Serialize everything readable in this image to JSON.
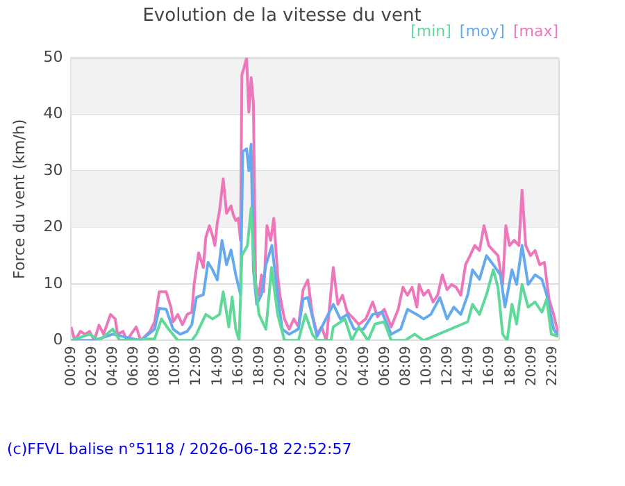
{
  "chart_data": {
    "type": "line",
    "title": "Evolution de la vitesse du vent",
    "ylabel": "Force du vent (km/h)",
    "annotations": [
      "(c)FFVL balise n°5118 / 2026-06-18 22:52:57"
    ],
    "xlim": [
      "2026-06-17T00:09",
      "2026-06-18T22:42"
    ],
    "xticks": [
      {
        "value": "2026-06-17T00:09",
        "label": "00:09"
      },
      {
        "value": "2026-06-17T02:09",
        "label": "02:09"
      },
      {
        "value": "2026-06-17T04:09",
        "label": "04:09"
      },
      {
        "value": "2026-06-17T06:09",
        "label": "06:09"
      },
      {
        "value": "2026-06-17T08:09",
        "label": "08:09"
      },
      {
        "value": "2026-06-17T10:09",
        "label": "10:09"
      },
      {
        "value": "2026-06-17T12:09",
        "label": "12:09"
      },
      {
        "value": "2026-06-17T14:09",
        "label": "14:09"
      },
      {
        "value": "2026-06-17T16:09",
        "label": "16:09"
      },
      {
        "value": "2026-06-17T18:09",
        "label": "18:09"
      },
      {
        "value": "2026-06-17T20:09",
        "label": "20:09"
      },
      {
        "value": "2026-06-17T22:09",
        "label": "22:09"
      },
      {
        "value": "2026-06-18T00:09",
        "label": "00:09"
      },
      {
        "value": "2026-06-18T02:09",
        "label": "02:09"
      },
      {
        "value": "2026-06-18T04:09",
        "label": "04:09"
      },
      {
        "value": "2026-06-18T06:09",
        "label": "06:09"
      },
      {
        "value": "2026-06-18T08:09",
        "label": "08:09"
      },
      {
        "value": "2026-06-18T10:09",
        "label": "10:09"
      },
      {
        "value": "2026-06-18T12:09",
        "label": "12:09"
      },
      {
        "value": "2026-06-18T14:09",
        "label": "14:09"
      },
      {
        "value": "2026-06-18T16:09",
        "label": "16:09"
      },
      {
        "value": "2026-06-18T18:09",
        "label": "18:09"
      },
      {
        "value": "2026-06-18T20:09",
        "label": "20:09"
      },
      {
        "value": "2026-06-18T22:09",
        "label": "22:09"
      }
    ],
    "ylim": [
      0,
      50
    ],
    "yticks": [
      0,
      10,
      20,
      30,
      40,
      50
    ],
    "grid": "y",
    "legend": "top right",
    "marker": "none",
    "bands": [
      {
        "axis": "y",
        "from": 20,
        "to": 30,
        "color": "#f2f2f2"
      },
      {
        "axis": "y",
        "from": 40,
        "to": 50,
        "color": "#f2f2f2"
      }
    ],
    "series": [
      {
        "name": "[min]",
        "color": "#5fd99a",
        "x": [
          "2026-06-17T00:09",
          "2026-06-17T01:55",
          "2026-06-17T02:49",
          "2026-06-17T04:08",
          "2026-06-17T04:48",
          "2026-06-17T08:08",
          "2026-06-17T08:47",
          "2026-06-17T09:28",
          "2026-06-17T10:21",
          "2026-06-17T11:41",
          "2026-06-17T12:07",
          "2026-06-17T13:01",
          "2026-06-17T13:40",
          "2026-06-17T14:20",
          "2026-06-17T14:41",
          "2026-06-17T15:13",
          "2026-06-17T15:32",
          "2026-06-17T15:53",
          "2026-06-17T16:12",
          "2026-06-17T16:28",
          "2026-06-17T17:00",
          "2026-06-17T17:21",
          "2026-06-17T17:40",
          "2026-06-17T18:06",
          "2026-06-17T18:46",
          "2026-06-17T19:18",
          "2026-06-17T19:53",
          "2026-06-17T20:32",
          "2026-06-17T21:52",
          "2026-06-17T22:32",
          "2026-06-17T23:12",
          "2026-06-17T23:39",
          "2026-06-18T00:59",
          "2026-06-18T01:12",
          "2026-06-18T02:19",
          "2026-06-18T02:58",
          "2026-06-18T03:38",
          "2026-06-18T04:31",
          "2026-06-18T05:11",
          "2026-06-18T06:04",
          "2026-06-18T06:44",
          "2026-06-18T08:04",
          "2026-06-18T08:58",
          "2026-06-18T09:50",
          "2026-06-18T14:03",
          "2026-06-18T14:30",
          "2026-06-18T15:10",
          "2026-06-18T15:50",
          "2026-06-18T16:29",
          "2026-06-18T16:56",
          "2026-06-18T17:23",
          "2026-06-18T17:49",
          "2026-06-18T18:16",
          "2026-06-18T18:43",
          "2026-06-18T19:14",
          "2026-06-18T19:49",
          "2026-06-18T20:29",
          "2026-06-18T21:08",
          "2026-06-18T21:35",
          "2026-06-18T22:02",
          "2026-06-18T22:42"
        ],
        "values": [
          0,
          1.1,
          0,
          2,
          0,
          0.3,
          3.8,
          2,
          0,
          0,
          1.1,
          4.6,
          3.8,
          4.6,
          8.6,
          2.4,
          7.7,
          2,
          0,
          15,
          16.8,
          23.4,
          11.6,
          4.6,
          2,
          12.9,
          4.6,
          0,
          0,
          4.6,
          1.1,
          0,
          0,
          2.4,
          3.8,
          0,
          2.4,
          0,
          2.9,
          3.3,
          0,
          0,
          1.1,
          0,
          3.3,
          6.4,
          4.6,
          8.1,
          12.5,
          9.4,
          1.1,
          0,
          6.4,
          2.9,
          9.9,
          5.9,
          6.8,
          5,
          7.3,
          1.1,
          0.7
        ]
      },
      {
        "name": "[moy]",
        "color": "#66aaee",
        "x": [
          "2026-06-17T00:09",
          "2026-06-17T02:22",
          "2026-06-17T04:08",
          "2026-06-17T06:48",
          "2026-06-17T08:08",
          "2026-06-17T08:34",
          "2026-06-17T09:14",
          "2026-06-17T09:54",
          "2026-06-17T10:34",
          "2026-06-17T11:14",
          "2026-06-17T11:41",
          "2026-06-17T12:07",
          "2026-06-17T12:47",
          "2026-06-17T13:14",
          "2026-06-17T13:40",
          "2026-06-17T14:07",
          "2026-06-17T14:34",
          "2026-06-17T15:00",
          "2026-06-17T15:26",
          "2026-06-17T15:53",
          "2026-06-17T16:20",
          "2026-06-17T16:33",
          "2026-06-17T16:55",
          "2026-06-17T17:08",
          "2026-06-17T17:21",
          "2026-06-17T17:34",
          "2026-06-17T17:53",
          "2026-06-17T18:20",
          "2026-06-17T18:46",
          "2026-06-17T19:20",
          "2026-06-17T19:53",
          "2026-06-17T20:19",
          "2026-06-17T20:59",
          "2026-06-17T21:52",
          "2026-06-17T22:19",
          "2026-06-17T22:46",
          "2026-06-17T23:39",
          "2026-06-18T01:12",
          "2026-06-18T01:52",
          "2026-06-18T02:32",
          "2026-06-18T03:11",
          "2026-06-18T04:05",
          "2026-06-18T04:58",
          "2026-06-18T05:51",
          "2026-06-18T06:44",
          "2026-06-18T07:38",
          "2026-06-18T08:17",
          "2026-06-18T09:11",
          "2026-06-18T09:50",
          "2026-06-18T10:31",
          "2026-06-18T11:23",
          "2026-06-18T12:04",
          "2026-06-18T12:43",
          "2026-06-18T13:23",
          "2026-06-18T14:03",
          "2026-06-18T14:30",
          "2026-06-18T15:10",
          "2026-06-18T15:50",
          "2026-06-18T16:29",
          "2026-06-18T17:10",
          "2026-06-18T17:36",
          "2026-06-18T18:16",
          "2026-06-18T18:43",
          "2026-06-18T19:14",
          "2026-06-18T19:49",
          "2026-06-18T20:29",
          "2026-06-18T21:08",
          "2026-06-18T21:35",
          "2026-06-18T22:15",
          "2026-06-18T22:42"
        ],
        "values": [
          0,
          0,
          1.1,
          0,
          2,
          5.7,
          5.5,
          2,
          1.1,
          1.6,
          2.8,
          7.6,
          8.1,
          13.8,
          12.5,
          10.7,
          17.7,
          13.4,
          16,
          11.6,
          8.1,
          33.4,
          33.9,
          30,
          34.7,
          12.5,
          6.4,
          8.1,
          13.4,
          16.8,
          8.1,
          2,
          1.1,
          2,
          7.3,
          7.6,
          0.7,
          6.4,
          3.8,
          4.6,
          2,
          2,
          4.6,
          5,
          1.1,
          2,
          5.5,
          4.6,
          3.8,
          4.6,
          7.6,
          3.8,
          5.9,
          4.6,
          8.1,
          12.5,
          10.8,
          15,
          13.4,
          11.6,
          5.9,
          12.5,
          9.9,
          16.8,
          9.9,
          11.6,
          10.8,
          8.1,
          2,
          0.7
        ]
      },
      {
        "name": "[max]",
        "color": "#ee77bb",
        "x": [
          "2026-06-17T00:09",
          "2026-06-17T00:30",
          "2026-06-17T01:02",
          "2026-06-17T01:29",
          "2026-06-17T01:55",
          "2026-06-17T02:22",
          "2026-06-17T02:49",
          "2026-06-17T03:15",
          "2026-06-17T03:55",
          "2026-06-17T04:22",
          "2026-06-17T04:35",
          "2026-06-17T05:07",
          "2026-06-17T05:28",
          "2026-06-17T06:22",
          "2026-06-17T06:48",
          "2026-06-17T07:41",
          "2026-06-17T08:08",
          "2026-06-17T08:34",
          "2026-06-17T09:14",
          "2026-06-17T09:41",
          "2026-06-17T09:54",
          "2026-06-17T10:21",
          "2026-06-17T10:47",
          "2026-06-17T11:14",
          "2026-06-17T11:41",
          "2026-06-17T11:54",
          "2026-06-17T12:20",
          "2026-06-17T12:47",
          "2026-06-17T13:01",
          "2026-06-17T13:22",
          "2026-06-17T13:40",
          "2026-06-17T13:53",
          "2026-06-17T14:07",
          "2026-06-17T14:20",
          "2026-06-17T14:41",
          "2026-06-17T15:00",
          "2026-06-17T15:26",
          "2026-06-17T15:40",
          "2026-06-17T15:53",
          "2026-06-17T16:07",
          "2026-06-17T16:20",
          "2026-06-17T16:28",
          "2026-06-17T16:41",
          "2026-06-17T16:55",
          "2026-06-17T17:08",
          "2026-06-17T17:21",
          "2026-06-17T17:34",
          "2026-06-17T17:47",
          "2026-06-17T18:06",
          "2026-06-17T18:20",
          "2026-06-17T18:33",
          "2026-06-17T18:52",
          "2026-06-17T19:13",
          "2026-06-17T19:31",
          "2026-06-17T19:53",
          "2026-06-17T20:06",
          "2026-06-17T20:32",
          "2026-06-17T20:59",
          "2026-06-17T21:26",
          "2026-06-17T21:52",
          "2026-06-17T22:19",
          "2026-06-17T22:46",
          "2026-06-17T23:12",
          "2026-06-17T23:39",
          "2026-06-18T00:05",
          "2026-06-18T00:32",
          "2026-06-18T01:12",
          "2026-06-18T01:38",
          "2026-06-18T02:05",
          "2026-06-18T02:32",
          "2026-06-18T03:11",
          "2026-06-18T03:38",
          "2026-06-18T04:18",
          "2026-06-18T04:58",
          "2026-06-18T05:25",
          "2026-06-18T06:04",
          "2026-06-18T06:44",
          "2026-06-18T07:24",
          "2026-06-18T07:51",
          "2026-06-18T08:17",
          "2026-06-18T08:44",
          "2026-06-18T09:11",
          "2026-06-18T09:24",
          "2026-06-18T09:50",
          "2026-06-18T10:17",
          "2026-06-18T10:44",
          "2026-06-18T11:10",
          "2026-06-18T11:37",
          "2026-06-18T12:04",
          "2026-06-18T12:30",
          "2026-06-18T12:56",
          "2026-06-18T13:23",
          "2026-06-18T13:50",
          "2026-06-18T14:16",
          "2026-06-18T14:43",
          "2026-06-18T15:10",
          "2026-06-18T15:36",
          "2026-06-18T16:03",
          "2026-06-18T16:29",
          "2026-06-18T16:56",
          "2026-06-18T17:23",
          "2026-06-18T17:41",
          "2026-06-18T18:02",
          "2026-06-18T18:29",
          "2026-06-18T18:56",
          "2026-06-18T19:14",
          "2026-06-18T19:35",
          "2026-06-18T20:02",
          "2026-06-18T20:29",
          "2026-06-18T20:55",
          "2026-06-18T21:22",
          "2026-06-18T21:49",
          "2026-06-18T22:15",
          "2026-06-18T22:42"
        ],
        "values": [
          2.4,
          0,
          1.6,
          1.1,
          1.6,
          0,
          2.7,
          1.1,
          4.6,
          3.8,
          1.1,
          1.6,
          0,
          2.4,
          0,
          1.6,
          3.3,
          8.6,
          8.6,
          5.9,
          3.3,
          4.6,
          2.8,
          4.6,
          5,
          9.9,
          15.5,
          12.9,
          18.2,
          20.3,
          18.5,
          16.8,
          20.8,
          23,
          28.6,
          22.5,
          23.8,
          22.1,
          21.2,
          21.6,
          17.7,
          47,
          48.3,
          50,
          40.4,
          46.5,
          42,
          9.9,
          8,
          11.6,
          8.6,
          20.3,
          17.7,
          21.6,
          11.6,
          8,
          3.8,
          2,
          3.8,
          2.4,
          9,
          10.7,
          4.6,
          1.1,
          2.4,
          0,
          12.9,
          6.4,
          8,
          5,
          3.8,
          2.8,
          3.8,
          6.8,
          4.2,
          5.5,
          2.4,
          5.5,
          9.4,
          8,
          9.4,
          5.9,
          9.9,
          8,
          8.9,
          6.8,
          8,
          11.6,
          9,
          9.9,
          9.4,
          8,
          13.4,
          15,
          16.8,
          15.9,
          20.3,
          16.8,
          15.9,
          15,
          9.9,
          20.3,
          16.8,
          17.7,
          16.8,
          26.6,
          16.8,
          15,
          15.9,
          13.4,
          13.8,
          7.3,
          4.6,
          1.1
        ]
      }
    ]
  }
}
